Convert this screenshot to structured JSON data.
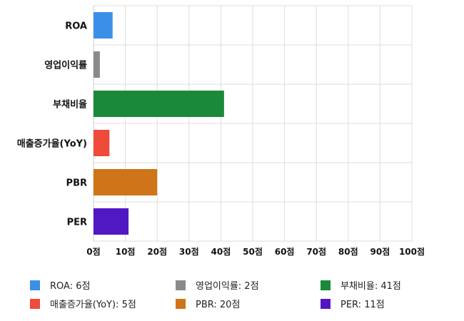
{
  "chart_data": {
    "type": "bar",
    "orientation": "horizontal",
    "categories": [
      "ROA",
      "영업이익률",
      "부채비율",
      "매출증가율(YoY)",
      "PBR",
      "PER"
    ],
    "values": [
      6,
      2,
      41,
      5,
      20,
      11
    ],
    "colors": [
      "#3c8fe8",
      "#8a8a8a",
      "#1a8a3a",
      "#ef4a3a",
      "#cf7418",
      "#5018c2"
    ],
    "xlim": [
      0,
      100
    ],
    "x_ticks": [
      0,
      10,
      20,
      30,
      40,
      50,
      60,
      70,
      80,
      90,
      100
    ],
    "tick_unit": "점",
    "grid": true,
    "legend_position": "bottom",
    "legend": [
      {
        "label": "ROA: 6점",
        "color": "#3c8fe8"
      },
      {
        "label": "영업이익률: 2점",
        "color": "#8a8a8a"
      },
      {
        "label": "부채비율: 41점",
        "color": "#1a8a3a"
      },
      {
        "label": "매출증가율(YoY): 5점",
        "color": "#ef4a3a"
      },
      {
        "label": "PBR: 20점",
        "color": "#cf7418"
      },
      {
        "label": "PER: 11점",
        "color": "#5018c2"
      }
    ]
  }
}
